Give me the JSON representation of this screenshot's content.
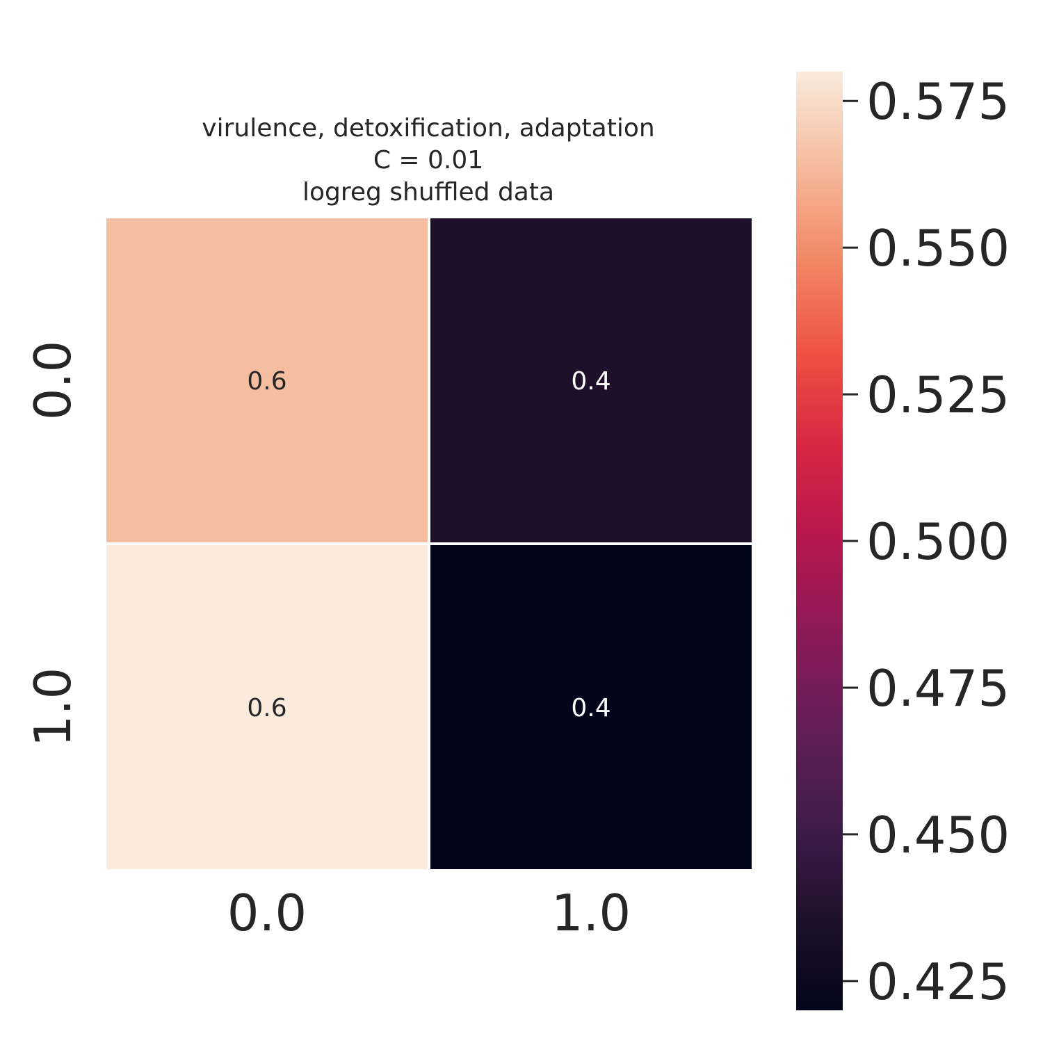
{
  "chart_data": {
    "type": "heatmap",
    "title_lines": [
      "virulence, detoxification, adaptation",
      "C = 0.01",
      "logreg shuffled data"
    ],
    "x_categories": [
      "0.0",
      "1.0"
    ],
    "y_categories": [
      "0.0",
      "1.0"
    ],
    "values": [
      [
        0.565,
        0.435
      ],
      [
        0.58,
        0.42
      ]
    ],
    "annotations": [
      [
        "0.6",
        "0.4"
      ],
      [
        "0.6",
        "0.4"
      ]
    ],
    "colorbar": {
      "range": [
        0.42,
        0.58
      ],
      "ticks": [
        0.425,
        0.45,
        0.475,
        0.5,
        0.525,
        0.55,
        0.575
      ],
      "tick_labels": [
        "0.425",
        "0.450",
        "0.475",
        "0.500",
        "0.525",
        "0.550",
        "0.575"
      ],
      "colormap": "rocket"
    },
    "xlabel": "",
    "ylabel": ""
  }
}
